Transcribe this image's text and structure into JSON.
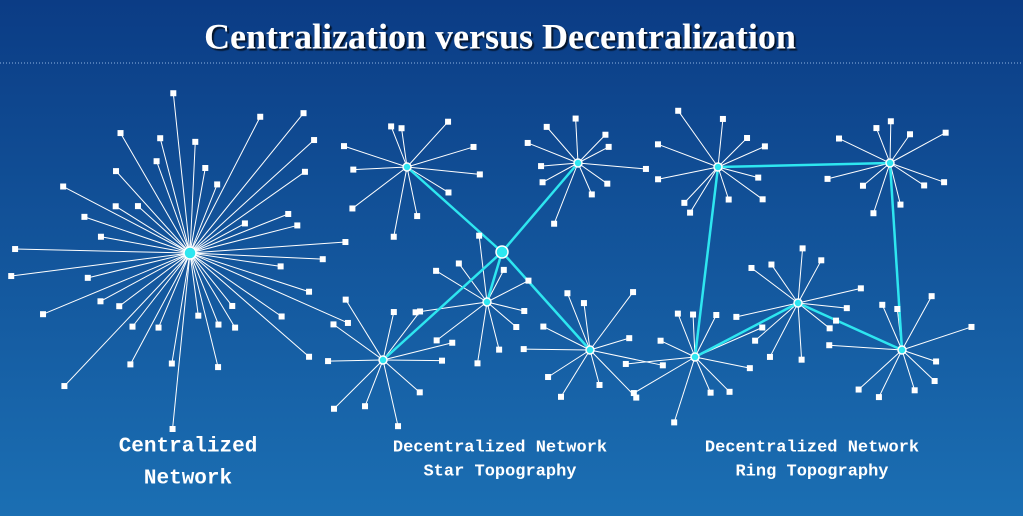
{
  "title": "Centralization versus Decentralization",
  "panels": [
    {
      "caption": [
        "Centralized",
        "Network"
      ]
    },
    {
      "caption": [
        "Decentralized Network",
        "Star Topography"
      ]
    },
    {
      "caption": [
        "Decentralized Network",
        "Ring Topography"
      ]
    }
  ]
}
